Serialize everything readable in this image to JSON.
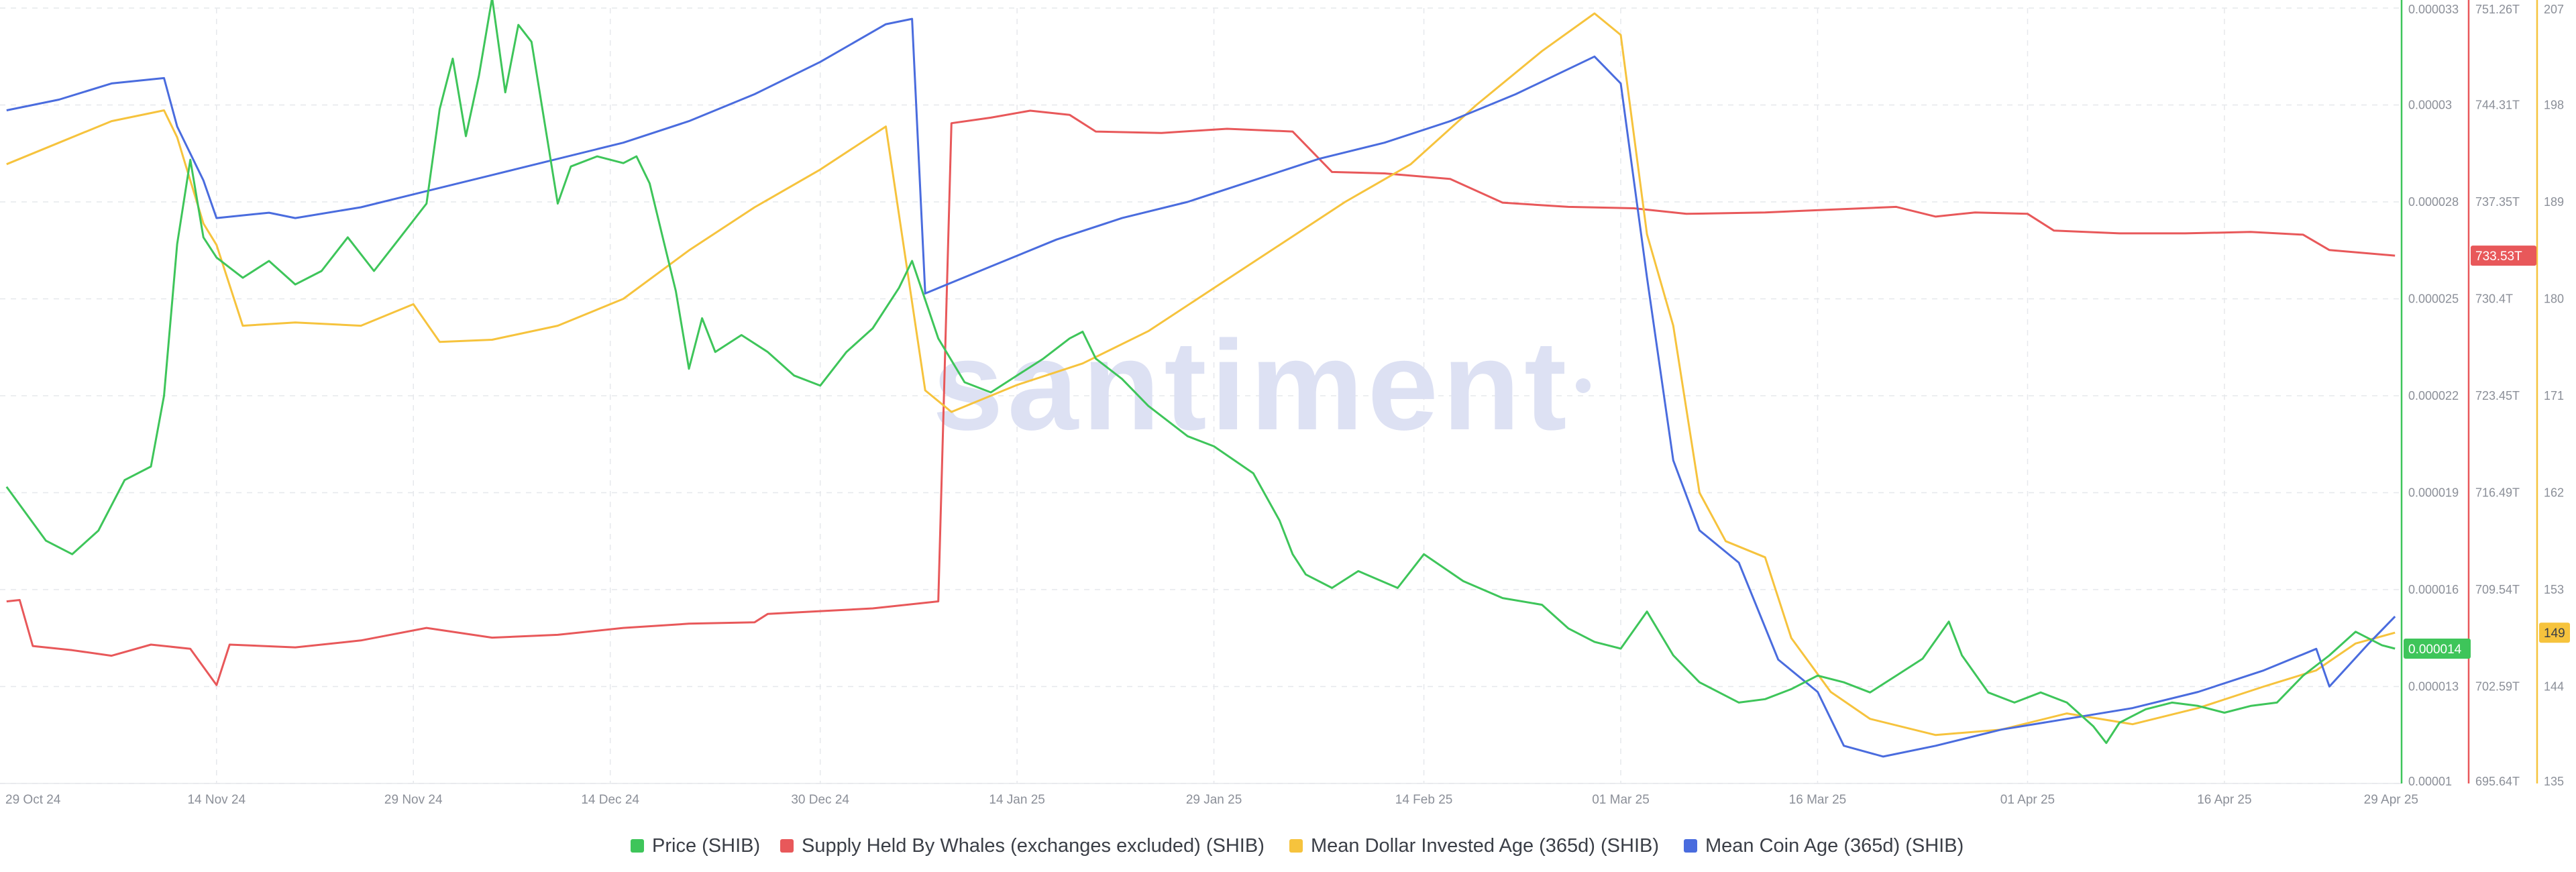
{
  "chart_data": {
    "type": "line",
    "watermark": "santiment",
    "x_ticks": [
      "29 Oct 24",
      "14 Nov 24",
      "29 Nov 24",
      "14 Dec 24",
      "30 Dec 24",
      "14 Jan 25",
      "29 Jan 25",
      "14 Feb 25",
      "01 Mar 25",
      "16 Mar 25",
      "01 Apr 25",
      "16 Apr 25",
      "29 Apr 25"
    ],
    "grid": true,
    "legend_position": "bottom",
    "axes": {
      "price": {
        "ticks": [
          "0.000033",
          "0.00003",
          "0.000028",
          "0.000025",
          "0.000022",
          "0.000019",
          "0.000016",
          "0.000013",
          "0.00001"
        ],
        "ylim": [
          1e-05,
          3.3e-05
        ],
        "current_value": "0.000014",
        "color": "#3ec55a"
      },
      "whales": {
        "ticks": [
          "751.26T",
          "744.31T",
          "737.35T",
          "730.4T",
          "723.45T",
          "716.49T",
          "709.54T",
          "702.59T",
          "695.64T"
        ],
        "ylim": [
          695.64,
          751.26
        ],
        "current_value": "733.53T",
        "color": "#e8585a"
      },
      "age": {
        "ticks": [
          "207",
          "198",
          "189",
          "180",
          "171",
          "162",
          "153",
          "144",
          "135"
        ],
        "ylim": [
          135,
          207
        ],
        "current_value": "149",
        "color": "#f6c33d"
      }
    },
    "series": [
      {
        "name": "Price (SHIB)",
        "axis": "price",
        "color": "#3ec55a",
        "points": [
          [
            "2024-10-29",
            1.88e-05
          ],
          [
            "2024-11-01",
            1.72e-05
          ],
          [
            "2024-11-03",
            1.68e-05
          ],
          [
            "2024-11-05",
            1.75e-05
          ],
          [
            "2024-11-07",
            1.9e-05
          ],
          [
            "2024-11-09",
            1.94e-05
          ],
          [
            "2024-11-10",
            2.15e-05
          ],
          [
            "2024-11-11",
            2.6e-05
          ],
          [
            "2024-11-12",
            2.85e-05
          ],
          [
            "2024-11-13",
            2.62e-05
          ],
          [
            "2024-11-14",
            2.56e-05
          ],
          [
            "2024-11-16",
            2.5e-05
          ],
          [
            "2024-11-18",
            2.55e-05
          ],
          [
            "2024-11-20",
            2.48e-05
          ],
          [
            "2024-11-22",
            2.52e-05
          ],
          [
            "2024-11-24",
            2.62e-05
          ],
          [
            "2024-11-26",
            2.52e-05
          ],
          [
            "2024-11-28",
            2.62e-05
          ],
          [
            "2024-11-30",
            2.72e-05
          ],
          [
            "2024-12-01",
            3e-05
          ],
          [
            "2024-12-02",
            3.15e-05
          ],
          [
            "2024-12-03",
            2.92e-05
          ],
          [
            "2024-12-04",
            3.1e-05
          ],
          [
            "2024-12-05",
            3.33e-05
          ],
          [
            "2024-12-06",
            3.05e-05
          ],
          [
            "2024-12-07",
            3.25e-05
          ],
          [
            "2024-12-08",
            3.2e-05
          ],
          [
            "2024-12-10",
            2.72e-05
          ],
          [
            "2024-12-11",
            2.83e-05
          ],
          [
            "2024-12-13",
            2.86e-05
          ],
          [
            "2024-12-15",
            2.84e-05
          ],
          [
            "2024-12-16",
            2.86e-05
          ],
          [
            "2024-12-17",
            2.78e-05
          ],
          [
            "2024-12-18",
            2.62e-05
          ],
          [
            "2024-12-19",
            2.46e-05
          ],
          [
            "2024-12-20",
            2.23e-05
          ],
          [
            "2024-12-21",
            2.38e-05
          ],
          [
            "2024-12-22",
            2.28e-05
          ],
          [
            "2024-12-24",
            2.33e-05
          ],
          [
            "2024-12-26",
            2.28e-05
          ],
          [
            "2024-12-28",
            2.21e-05
          ],
          [
            "2024-12-30",
            2.18e-05
          ],
          [
            "2025-01-01",
            2.28e-05
          ],
          [
            "2025-01-03",
            2.35e-05
          ],
          [
            "2025-01-05",
            2.47e-05
          ],
          [
            "2025-01-06",
            2.55e-05
          ],
          [
            "2025-01-08",
            2.32e-05
          ],
          [
            "2025-01-10",
            2.19e-05
          ],
          [
            "2025-01-12",
            2.16e-05
          ],
          [
            "2025-01-14",
            2.21e-05
          ],
          [
            "2025-01-16",
            2.26e-05
          ],
          [
            "2025-01-18",
            2.32e-05
          ],
          [
            "2025-01-19",
            2.34e-05
          ],
          [
            "2025-01-20",
            2.26e-05
          ],
          [
            "2025-01-22",
            2.2e-05
          ],
          [
            "2025-01-24",
            2.12e-05
          ],
          [
            "2025-01-27",
            2.03e-05
          ],
          [
            "2025-01-29",
            2e-05
          ],
          [
            "2025-02-01",
            1.92e-05
          ],
          [
            "2025-02-03",
            1.78e-05
          ],
          [
            "2025-02-04",
            1.68e-05
          ],
          [
            "2025-02-05",
            1.62e-05
          ],
          [
            "2025-02-07",
            1.58e-05
          ],
          [
            "2025-02-09",
            1.63e-05
          ],
          [
            "2025-02-12",
            1.58e-05
          ],
          [
            "2025-02-14",
            1.68e-05
          ],
          [
            "2025-02-17",
            1.6e-05
          ],
          [
            "2025-02-20",
            1.55e-05
          ],
          [
            "2025-02-23",
            1.53e-05
          ],
          [
            "2025-02-25",
            1.46e-05
          ],
          [
            "2025-02-27",
            1.42e-05
          ],
          [
            "2025-03-01",
            1.4e-05
          ],
          [
            "2025-03-03",
            1.51e-05
          ],
          [
            "2025-03-05",
            1.38e-05
          ],
          [
            "2025-03-07",
            1.3e-05
          ],
          [
            "2025-03-10",
            1.24e-05
          ],
          [
            "2025-03-12",
            1.25e-05
          ],
          [
            "2025-03-14",
            1.28e-05
          ],
          [
            "2025-03-16",
            1.32e-05
          ],
          [
            "2025-03-18",
            1.3e-05
          ],
          [
            "2025-03-20",
            1.27e-05
          ],
          [
            "2025-03-22",
            1.32e-05
          ],
          [
            "2025-03-24",
            1.37e-05
          ],
          [
            "2025-03-26",
            1.48e-05
          ],
          [
            "2025-03-27",
            1.38e-05
          ],
          [
            "2025-03-29",
            1.27e-05
          ],
          [
            "2025-03-31",
            1.24e-05
          ],
          [
            "2025-04-02",
            1.27e-05
          ],
          [
            "2025-04-04",
            1.24e-05
          ],
          [
            "2025-04-06",
            1.17e-05
          ],
          [
            "2025-04-07",
            1.12e-05
          ],
          [
            "2025-04-08",
            1.18e-05
          ],
          [
            "2025-04-10",
            1.22e-05
          ],
          [
            "2025-04-12",
            1.24e-05
          ],
          [
            "2025-04-14",
            1.23e-05
          ],
          [
            "2025-04-16",
            1.21e-05
          ],
          [
            "2025-04-18",
            1.23e-05
          ],
          [
            "2025-04-20",
            1.24e-05
          ],
          [
            "2025-04-22",
            1.32e-05
          ],
          [
            "2025-04-24",
            1.38e-05
          ],
          [
            "2025-04-26",
            1.45e-05
          ],
          [
            "2025-04-28",
            1.41e-05
          ],
          [
            "2025-04-29",
            1.4e-05
          ]
        ]
      },
      {
        "name": "Supply Held By Whales (exchanges excluded) (SHIB)",
        "axis": "whales",
        "color": "#e8585a",
        "points": [
          [
            "2024-10-29",
            708.7
          ],
          [
            "2024-10-30",
            708.8
          ],
          [
            "2024-10-31",
            705.5
          ],
          [
            "2024-11-03",
            705.2
          ],
          [
            "2024-11-06",
            704.8
          ],
          [
            "2024-11-09",
            705.6
          ],
          [
            "2024-11-12",
            705.3
          ],
          [
            "2024-11-14",
            702.7
          ],
          [
            "2024-11-15",
            705.6
          ],
          [
            "2024-11-20",
            705.4
          ],
          [
            "2024-11-25",
            705.9
          ],
          [
            "2024-11-30",
            706.8
          ],
          [
            "2024-12-05",
            706.1
          ],
          [
            "2024-12-10",
            706.3
          ],
          [
            "2024-12-15",
            706.8
          ],
          [
            "2024-12-20",
            707.1
          ],
          [
            "2024-12-25",
            707.2
          ],
          [
            "2024-12-26",
            707.8
          ],
          [
            "2024-12-30",
            708.0
          ],
          [
            "2025-01-03",
            708.2
          ],
          [
            "2025-01-08",
            708.7
          ],
          [
            "2025-01-09",
            743.0
          ],
          [
            "2025-01-12",
            743.4
          ],
          [
            "2025-01-15",
            743.9
          ],
          [
            "2025-01-18",
            743.6
          ],
          [
            "2025-01-20",
            742.4
          ],
          [
            "2025-01-25",
            742.3
          ],
          [
            "2025-01-30",
            742.6
          ],
          [
            "2025-02-04",
            742.4
          ],
          [
            "2025-02-07",
            739.5
          ],
          [
            "2025-02-11",
            739.4
          ],
          [
            "2025-02-16",
            739.0
          ],
          [
            "2025-02-20",
            737.3
          ],
          [
            "2025-02-25",
            737.0
          ],
          [
            "2025-03-02",
            736.9
          ],
          [
            "2025-03-06",
            736.5
          ],
          [
            "2025-03-12",
            736.6
          ],
          [
            "2025-03-17",
            736.8
          ],
          [
            "2025-03-22",
            737.0
          ],
          [
            "2025-03-25",
            736.3
          ],
          [
            "2025-03-28",
            736.6
          ],
          [
            "2025-04-01",
            736.5
          ],
          [
            "2025-04-03",
            735.3
          ],
          [
            "2025-04-08",
            735.1
          ],
          [
            "2025-04-13",
            735.1
          ],
          [
            "2025-04-18",
            735.2
          ],
          [
            "2025-04-22",
            735.0
          ],
          [
            "2025-04-24",
            733.9
          ],
          [
            "2025-04-29",
            733.5
          ]
        ]
      },
      {
        "name": "Mean Dollar Invested Age (365d) (SHIB)",
        "axis": "age",
        "color": "#f6c33d",
        "points": [
          [
            "2024-10-29",
            192.5
          ],
          [
            "2024-11-02",
            194.5
          ],
          [
            "2024-11-06",
            196.5
          ],
          [
            "2024-11-10",
            197.5
          ],
          [
            "2024-11-11",
            195.0
          ],
          [
            "2024-11-13",
            187.0
          ],
          [
            "2024-11-14",
            185.0
          ],
          [
            "2024-11-16",
            177.5
          ],
          [
            "2024-11-20",
            177.8
          ],
          [
            "2024-11-25",
            177.5
          ],
          [
            "2024-11-29",
            179.5
          ],
          [
            "2024-12-01",
            176.0
          ],
          [
            "2024-12-05",
            176.2
          ],
          [
            "2024-12-10",
            177.5
          ],
          [
            "2024-12-15",
            180.0
          ],
          [
            "2024-12-20",
            184.5
          ],
          [
            "2024-12-25",
            188.5
          ],
          [
            "2024-12-30",
            192.0
          ],
          [
            "2025-01-04",
            196.0
          ],
          [
            "2025-01-07",
            171.5
          ],
          [
            "2025-01-09",
            169.5
          ],
          [
            "2025-01-14",
            172.0
          ],
          [
            "2025-01-19",
            174.0
          ],
          [
            "2025-01-24",
            177.0
          ],
          [
            "2025-01-29",
            181.0
          ],
          [
            "2025-02-03",
            185.0
          ],
          [
            "2025-02-08",
            189.0
          ],
          [
            "2025-02-13",
            192.5
          ],
          [
            "2025-02-18",
            198.0
          ],
          [
            "2025-02-23",
            203.0
          ],
          [
            "2025-02-27",
            206.5
          ],
          [
            "2025-03-01",
            204.5
          ],
          [
            "2025-03-03",
            186.0
          ],
          [
            "2025-03-05",
            177.5
          ],
          [
            "2025-03-07",
            162.0
          ],
          [
            "2025-03-09",
            157.5
          ],
          [
            "2025-03-12",
            156.0
          ],
          [
            "2025-03-14",
            148.5
          ],
          [
            "2025-03-17",
            143.5
          ],
          [
            "2025-03-20",
            141.0
          ],
          [
            "2025-03-25",
            139.5
          ],
          [
            "2025-03-30",
            140.0
          ],
          [
            "2025-04-04",
            141.5
          ],
          [
            "2025-04-09",
            140.5
          ],
          [
            "2025-04-14",
            142.0
          ],
          [
            "2025-04-19",
            144.0
          ],
          [
            "2025-04-23",
            145.5
          ],
          [
            "2025-04-26",
            148.0
          ],
          [
            "2025-04-29",
            149.0
          ]
        ]
      },
      {
        "name": "Mean Coin Age (365d) (SHIB)",
        "axis": "age",
        "color": "#4a6cde",
        "points": [
          [
            "2024-10-29",
            197.5
          ],
          [
            "2024-11-02",
            198.5
          ],
          [
            "2024-11-06",
            200.0
          ],
          [
            "2024-11-10",
            200.5
          ],
          [
            "2024-11-11",
            196.0
          ],
          [
            "2024-11-13",
            191.0
          ],
          [
            "2024-11-14",
            187.5
          ],
          [
            "2024-11-18",
            188.0
          ],
          [
            "2024-11-20",
            187.5
          ],
          [
            "2024-11-25",
            188.5
          ],
          [
            "2024-11-30",
            190.0
          ],
          [
            "2024-12-05",
            191.5
          ],
          [
            "2024-12-10",
            193.0
          ],
          [
            "2024-12-15",
            194.5
          ],
          [
            "2024-12-20",
            196.5
          ],
          [
            "2024-12-25",
            199.0
          ],
          [
            "2024-12-30",
            202.0
          ],
          [
            "2025-01-04",
            205.5
          ],
          [
            "2025-01-06",
            206.0
          ],
          [
            "2025-01-07",
            180.5
          ],
          [
            "2025-01-12",
            183.0
          ],
          [
            "2025-01-17",
            185.5
          ],
          [
            "2025-01-22",
            187.5
          ],
          [
            "2025-01-27",
            189.0
          ],
          [
            "2025-02-01",
            191.0
          ],
          [
            "2025-02-06",
            193.0
          ],
          [
            "2025-02-11",
            194.5
          ],
          [
            "2025-02-16",
            196.5
          ],
          [
            "2025-02-21",
            199.0
          ],
          [
            "2025-02-27",
            202.5
          ],
          [
            "2025-03-01",
            200.0
          ],
          [
            "2025-03-03",
            182.0
          ],
          [
            "2025-03-05",
            165.0
          ],
          [
            "2025-03-07",
            158.5
          ],
          [
            "2025-03-10",
            155.5
          ],
          [
            "2025-03-13",
            146.5
          ],
          [
            "2025-03-16",
            143.5
          ],
          [
            "2025-03-18",
            138.5
          ],
          [
            "2025-03-21",
            137.5
          ],
          [
            "2025-03-25",
            138.5
          ],
          [
            "2025-03-30",
            140.0
          ],
          [
            "2025-04-04",
            141.0
          ],
          [
            "2025-04-09",
            142.0
          ],
          [
            "2025-04-14",
            143.5
          ],
          [
            "2025-04-19",
            145.5
          ],
          [
            "2025-04-23",
            147.5
          ],
          [
            "2025-04-24",
            144.0
          ],
          [
            "2025-04-27",
            148.0
          ],
          [
            "2025-04-29",
            150.5
          ]
        ]
      }
    ]
  }
}
